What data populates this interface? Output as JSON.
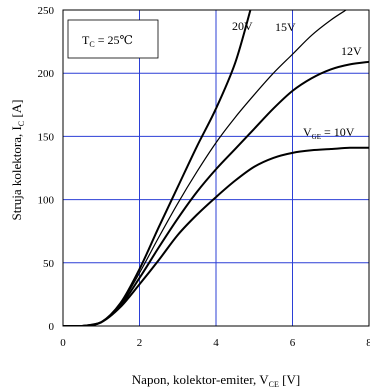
{
  "chart_data": {
    "type": "line",
    "xlabel": "Napon, kolektor-emiter, V",
    "xlabel_sub": "CE",
    "xlabel_unit": " [V]",
    "ylabel": "Struja kolektora, I",
    "ylabel_sub": "C",
    "ylabel_unit": " [A]",
    "xlim": [
      0,
      8
    ],
    "ylim": [
      0,
      250
    ],
    "xticks": [
      0,
      2,
      4,
      6,
      8
    ],
    "yticks": [
      0,
      50,
      100,
      150,
      200,
      250
    ],
    "xtick_labels": [
      "0",
      "2",
      "4",
      "6",
      "8"
    ],
    "ytick_labels": [
      "0",
      "50",
      "100",
      "150",
      "200",
      "250"
    ],
    "grid": true,
    "legend_box": {
      "text": "T",
      "sub": "C",
      "rest": " = 25℃"
    },
    "series": [
      {
        "name": "20V",
        "x": [
          0.5,
          1.0,
          1.5,
          2.0,
          2.5,
          3.0,
          3.5,
          4.0,
          4.5,
          4.9
        ],
        "y": [
          0,
          3,
          18,
          45,
          78,
          110,
          142,
          172,
          208,
          250
        ]
      },
      {
        "name": "15V",
        "x": [
          0.5,
          1.0,
          1.5,
          2.0,
          2.5,
          3.0,
          3.5,
          4.0,
          4.5,
          5.0,
          5.5,
          6.0,
          6.5,
          7.0,
          7.4
        ],
        "y": [
          0,
          3,
          17,
          42,
          70,
          97,
          122,
          145,
          165,
          183,
          200,
          215,
          230,
          242,
          250
        ]
      },
      {
        "name": "12V",
        "x": [
          0.5,
          1.0,
          1.5,
          2.0,
          2.5,
          3.0,
          3.5,
          4.0,
          4.5,
          5.0,
          5.5,
          6.0,
          6.5,
          7.0,
          7.5,
          8.0
        ],
        "y": [
          0,
          3,
          16,
          38,
          62,
          85,
          106,
          124,
          140,
          156,
          172,
          186,
          196,
          203,
          207,
          209
        ]
      },
      {
        "name": "V",
        "name_sub": "GE",
        "name_rest": " = 10V",
        "x": [
          0.5,
          1.0,
          1.5,
          2.0,
          2.5,
          3.0,
          3.5,
          4.0,
          4.5,
          5.0,
          5.5,
          6.0,
          6.5,
          7.0,
          7.5,
          8.0
        ],
        "y": [
          0,
          3,
          15,
          33,
          52,
          72,
          88,
          102,
          115,
          126,
          133,
          137,
          139,
          140,
          141,
          141
        ]
      }
    ]
  }
}
